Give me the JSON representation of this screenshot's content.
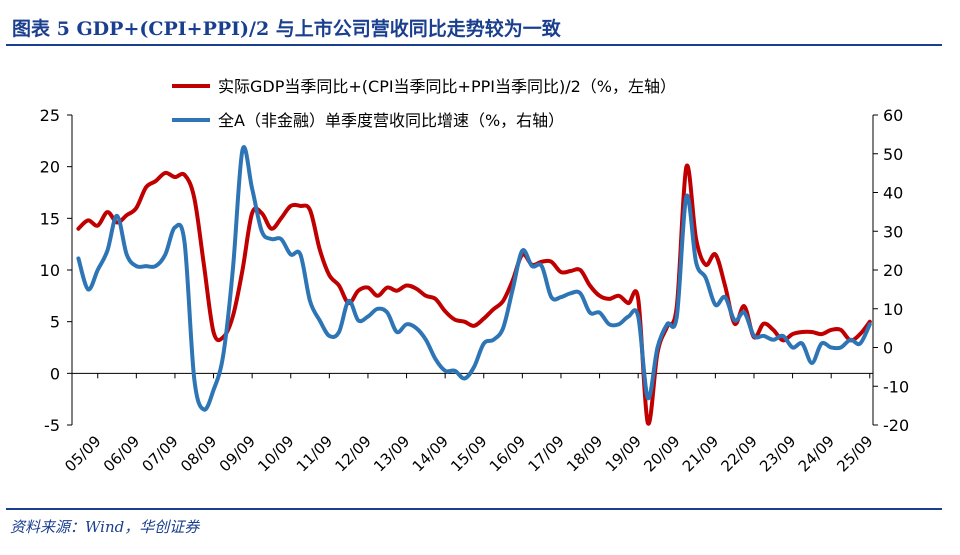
{
  "header": {
    "title": "图表 5   GDP+(CPI+PPI)/2 与上市公司营收同比走势较为一致"
  },
  "source": "资料来源：Wind，华创证券",
  "colors": {
    "gdp": "#c00000",
    "allA": "#2e75b6",
    "brand": "#1a3f8f"
  },
  "chart_data": {
    "type": "line",
    "title": "",
    "xlabel": "",
    "ylabel": "",
    "x_range": [
      2005.0,
      2025.75
    ],
    "ylim_left": [
      -5,
      25
    ],
    "ylim_right": [
      -20,
      60
    ],
    "yticks_left": [
      "25",
      "20",
      "15",
      "10",
      "5",
      "0",
      "-5"
    ],
    "yticks_right": [
      "60",
      "50",
      "40",
      "30",
      "20",
      "10",
      "0",
      "-10",
      "-20"
    ],
    "xtick_labels": [
      "05/09",
      "06/09",
      "07/09",
      "08/09",
      "09/09",
      "10/09",
      "11/09",
      "12/09",
      "13/09",
      "14/09",
      "15/09",
      "16/09",
      "17/09",
      "18/09",
      "19/09",
      "20/09",
      "21/09",
      "22/09",
      "23/09",
      "24/09",
      "25/09"
    ],
    "legend_position": "top",
    "series": [
      {
        "name": "实际GDP当季同比+(CPI当季同比+PPI当季同比)/2（%，左轴）",
        "axis": "left",
        "points": [
          [
            "2005-03",
            14.0
          ],
          [
            "2005-06",
            14.8
          ],
          [
            "2005-09",
            14.3
          ],
          [
            "2005-12",
            15.6
          ],
          [
            "2006-03",
            14.6
          ],
          [
            "2006-06",
            15.3
          ],
          [
            "2006-09",
            16.0
          ],
          [
            "2006-12",
            18.0
          ],
          [
            "2007-03",
            18.6
          ],
          [
            "2007-06",
            19.4
          ],
          [
            "2007-09",
            19.0
          ],
          [
            "2007-12",
            19.2
          ],
          [
            "2008-03",
            17.0
          ],
          [
            "2008-06",
            10.5
          ],
          [
            "2008-09",
            4.0
          ],
          [
            "2008-12",
            3.5
          ],
          [
            "2009-03",
            5.5
          ],
          [
            "2009-06",
            10.0
          ],
          [
            "2009-09",
            15.5
          ],
          [
            "2009-12",
            15.5
          ],
          [
            "2010-03",
            14.0
          ],
          [
            "2010-06",
            15.0
          ],
          [
            "2010-09",
            16.2
          ],
          [
            "2010-12",
            16.2
          ],
          [
            "2011-03",
            15.8
          ],
          [
            "2011-06",
            12.0
          ],
          [
            "2011-09",
            9.5
          ],
          [
            "2011-12",
            8.5
          ],
          [
            "2012-03",
            6.8
          ],
          [
            "2012-06",
            8.0
          ],
          [
            "2012-09",
            8.3
          ],
          [
            "2012-12",
            7.5
          ],
          [
            "2013-03",
            8.3
          ],
          [
            "2013-06",
            8.0
          ],
          [
            "2013-09",
            8.5
          ],
          [
            "2013-12",
            8.2
          ],
          [
            "2014-03",
            7.5
          ],
          [
            "2014-06",
            7.2
          ],
          [
            "2014-09",
            6.0
          ],
          [
            "2014-12",
            5.2
          ],
          [
            "2015-03",
            5.0
          ],
          [
            "2015-06",
            4.6
          ],
          [
            "2015-09",
            5.3
          ],
          [
            "2015-12",
            6.2
          ],
          [
            "2016-03",
            7.0
          ],
          [
            "2016-06",
            9.0
          ],
          [
            "2016-09",
            11.5
          ],
          [
            "2016-12",
            10.5
          ],
          [
            "2017-03",
            10.8
          ],
          [
            "2017-06",
            10.8
          ],
          [
            "2017-09",
            9.8
          ],
          [
            "2017-12",
            9.9
          ],
          [
            "2018-03",
            10.0
          ],
          [
            "2018-06",
            8.5
          ],
          [
            "2018-09",
            7.5
          ],
          [
            "2018-12",
            7.2
          ],
          [
            "2019-03",
            7.5
          ],
          [
            "2019-06",
            6.8
          ],
          [
            "2019-09",
            7.2
          ],
          [
            "2019-12",
            -4.8
          ],
          [
            "2020-03",
            2.0
          ],
          [
            "2020-06",
            4.5
          ],
          [
            "2020-09",
            6.5
          ],
          [
            "2020-12",
            20.0
          ],
          [
            "2021-03",
            13.0
          ],
          [
            "2021-06",
            10.5
          ],
          [
            "2021-09",
            11.5
          ],
          [
            "2021-12",
            8.5
          ],
          [
            "2022-03",
            4.8
          ],
          [
            "2022-06",
            6.5
          ],
          [
            "2022-09",
            3.5
          ],
          [
            "2022-12",
            4.8
          ],
          [
            "2023-03",
            4.2
          ],
          [
            "2023-06",
            3.2
          ],
          [
            "2023-09",
            3.8
          ],
          [
            "2023-12",
            4.0
          ],
          [
            "2024-03",
            4.0
          ],
          [
            "2024-06",
            3.8
          ],
          [
            "2024-09",
            4.2
          ],
          [
            "2024-12",
            4.2
          ],
          [
            "2025-03",
            3.2
          ],
          [
            "2025-06",
            3.8
          ],
          [
            "2025-09",
            5.0
          ]
        ]
      },
      {
        "name": "全A（非金融）单季度营收同比增速（%，右轴）",
        "axis": "right",
        "points": [
          [
            "2005-03",
            23
          ],
          [
            "2005-06",
            15
          ],
          [
            "2005-09",
            20
          ],
          [
            "2005-12",
            25
          ],
          [
            "2006-03",
            34
          ],
          [
            "2006-06",
            24
          ],
          [
            "2006-09",
            21
          ],
          [
            "2006-12",
            21
          ],
          [
            "2007-03",
            21
          ],
          [
            "2007-06",
            24
          ],
          [
            "2007-09",
            31
          ],
          [
            "2007-12",
            27
          ],
          [
            "2008-03",
            -8
          ],
          [
            "2008-06",
            -16
          ],
          [
            "2008-09",
            -11
          ],
          [
            "2008-12",
            -2
          ],
          [
            "2009-03",
            20
          ],
          [
            "2009-06",
            51
          ],
          [
            "2009-09",
            41
          ],
          [
            "2009-12",
            30
          ],
          [
            "2010-03",
            28
          ],
          [
            "2010-06",
            28
          ],
          [
            "2010-09",
            24
          ],
          [
            "2010-12",
            24
          ],
          [
            "2011-03",
            12
          ],
          [
            "2011-06",
            7
          ],
          [
            "2011-09",
            3
          ],
          [
            "2011-12",
            4
          ],
          [
            "2012-03",
            12
          ],
          [
            "2012-06",
            7
          ],
          [
            "2012-09",
            8
          ],
          [
            "2012-12",
            10
          ],
          [
            "2013-03",
            9
          ],
          [
            "2013-06",
            4
          ],
          [
            "2013-09",
            6
          ],
          [
            "2013-12",
            5
          ],
          [
            "2014-03",
            2
          ],
          [
            "2014-06",
            -3
          ],
          [
            "2014-09",
            -6
          ],
          [
            "2014-12",
            -6
          ],
          [
            "2015-03",
            -8
          ],
          [
            "2015-06",
            -5
          ],
          [
            "2015-09",
            1
          ],
          [
            "2015-12",
            2
          ],
          [
            "2016-03",
            5
          ],
          [
            "2016-06",
            15
          ],
          [
            "2016-09",
            25
          ],
          [
            "2016-12",
            21
          ],
          [
            "2017-03",
            21
          ],
          [
            "2017-06",
            13
          ],
          [
            "2017-09",
            13
          ],
          [
            "2017-12",
            14
          ],
          [
            "2018-03",
            14
          ],
          [
            "2018-06",
            9
          ],
          [
            "2018-09",
            9
          ],
          [
            "2018-12",
            6
          ],
          [
            "2019-03",
            6
          ],
          [
            "2019-06",
            8
          ],
          [
            "2019-09",
            8
          ],
          [
            "2019-12",
            -13
          ],
          [
            "2020-03",
            0
          ],
          [
            "2020-06",
            6
          ],
          [
            "2020-09",
            8
          ],
          [
            "2020-12",
            39
          ],
          [
            "2021-03",
            22
          ],
          [
            "2021-06",
            18
          ],
          [
            "2021-09",
            11
          ],
          [
            "2021-12",
            13
          ],
          [
            "2022-03",
            7
          ],
          [
            "2022-06",
            9
          ],
          [
            "2022-09",
            3
          ],
          [
            "2022-12",
            3
          ],
          [
            "2023-03",
            2
          ],
          [
            "2023-06",
            3
          ],
          [
            "2023-09",
            0
          ],
          [
            "2023-12",
            1
          ],
          [
            "2024-03",
            -4
          ],
          [
            "2024-06",
            1
          ],
          [
            "2024-09",
            0
          ],
          [
            "2024-12",
            0
          ],
          [
            "2025-03",
            2
          ],
          [
            "2025-06",
            1
          ],
          [
            "2025-09",
            6
          ]
        ]
      }
    ]
  }
}
